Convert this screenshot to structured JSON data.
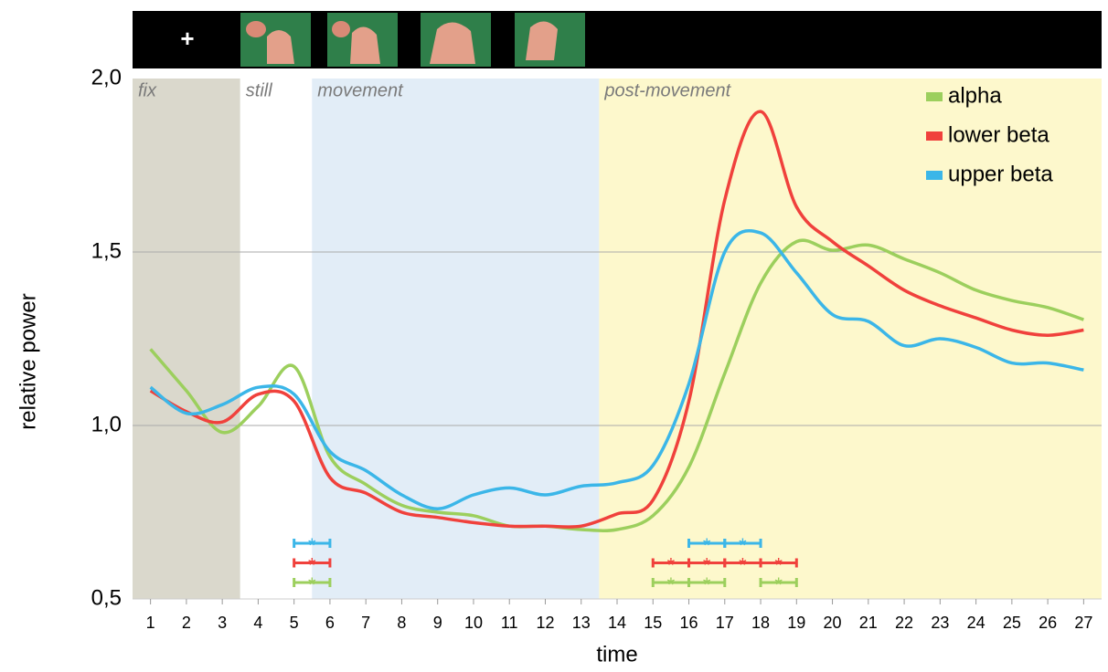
{
  "stimulus_strip": {
    "fixation": "+"
  },
  "chart_data": {
    "type": "line",
    "xlabel": "time",
    "ylabel": "relative power",
    "xlim": [
      0.5,
      27.5
    ],
    "ylim": [
      0.5,
      2.0
    ],
    "xticks": [
      1,
      2,
      3,
      4,
      5,
      6,
      7,
      8,
      9,
      10,
      11,
      12,
      13,
      14,
      15,
      16,
      17,
      18,
      19,
      20,
      21,
      22,
      23,
      24,
      25,
      26,
      27
    ],
    "yticks": [
      {
        "value": 0.5,
        "label": "0,5"
      },
      {
        "value": 1.0,
        "label": "1,0"
      },
      {
        "value": 1.5,
        "label": "1,5"
      },
      {
        "value": 2.0,
        "label": "2,0"
      }
    ],
    "grid": true,
    "legend": "top-right",
    "regions": [
      {
        "label": "fix",
        "start": 0.5,
        "end": 3.5,
        "color": "#dad8cc"
      },
      {
        "label": "still",
        "start": 3.5,
        "end": 5.5,
        "color": "#ffffff"
      },
      {
        "label": "movement",
        "start": 5.5,
        "end": 13.5,
        "color": "#e2edf7"
      },
      {
        "label": "post-movement",
        "start": 13.5,
        "end": 27.5,
        "color": "#fdf8cc"
      }
    ],
    "significance_label": "*",
    "x": [
      1,
      2,
      3,
      4,
      5,
      6,
      7,
      8,
      9,
      10,
      11,
      12,
      13,
      14,
      15,
      16,
      17,
      18,
      19,
      20,
      21,
      22,
      23,
      24,
      25,
      26,
      27
    ],
    "series": [
      {
        "name": "alpha",
        "color": "#9ccf5d",
        "values": [
          1.22,
          1.1,
          0.98,
          1.055,
          1.17,
          0.91,
          0.83,
          0.77,
          0.75,
          0.74,
          0.71,
          0.71,
          0.7,
          0.7,
          0.74,
          0.88,
          1.15,
          1.41,
          1.53,
          1.505,
          1.52,
          1.48,
          1.44,
          1.39,
          1.36,
          1.34,
          1.305
        ],
        "significant_intervals": [
          [
            5,
            6
          ],
          [
            15,
            16
          ],
          [
            16,
            17
          ],
          [
            18,
            19
          ]
        ]
      },
      {
        "name": "lower beta",
        "color": "#f0413c",
        "values": [
          1.1,
          1.04,
          1.01,
          1.09,
          1.07,
          0.85,
          0.805,
          0.75,
          0.735,
          0.72,
          0.71,
          0.71,
          0.71,
          0.745,
          0.785,
          1.07,
          1.65,
          1.905,
          1.63,
          1.53,
          1.46,
          1.39,
          1.345,
          1.31,
          1.275,
          1.26,
          1.275
        ],
        "significant_intervals": [
          [
            5,
            6
          ],
          [
            15,
            16
          ],
          [
            16,
            17
          ],
          [
            17,
            18
          ],
          [
            18,
            19
          ]
        ]
      },
      {
        "name": "upper beta",
        "color": "#3bb6e8",
        "values": [
          1.11,
          1.035,
          1.06,
          1.11,
          1.09,
          0.925,
          0.87,
          0.8,
          0.76,
          0.8,
          0.82,
          0.8,
          0.825,
          0.835,
          0.885,
          1.12,
          1.5,
          1.555,
          1.44,
          1.32,
          1.3,
          1.23,
          1.25,
          1.225,
          1.18,
          1.18,
          1.16
        ],
        "significant_intervals": [
          [
            5,
            6
          ],
          [
            16,
            17
          ],
          [
            17,
            18
          ]
        ]
      }
    ]
  }
}
